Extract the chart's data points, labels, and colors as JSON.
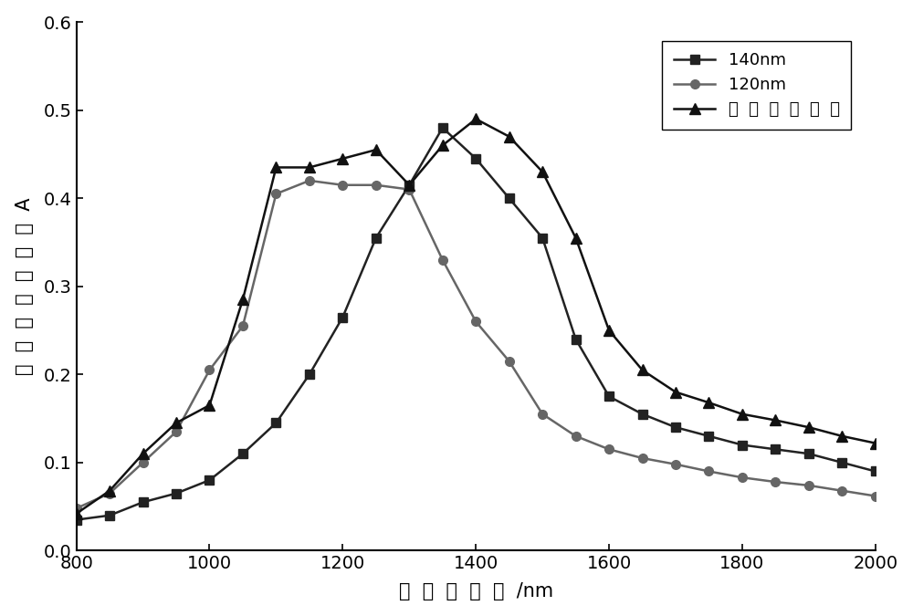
{
  "x": [
    800,
    850,
    900,
    950,
    1000,
    1050,
    1100,
    1150,
    1200,
    1250,
    1300,
    1350,
    1400,
    1450,
    1500,
    1550,
    1600,
    1650,
    1700,
    1750,
    1800,
    1850,
    1900,
    1950,
    2000
  ],
  "y_140nm": [
    0.035,
    0.04,
    0.055,
    0.065,
    0.08,
    0.11,
    0.145,
    0.2,
    0.265,
    0.355,
    0.415,
    0.48,
    0.445,
    0.4,
    0.355,
    0.24,
    0.175,
    0.155,
    0.14,
    0.13,
    0.12,
    0.115,
    0.11,
    0.1,
    0.09
  ],
  "y_120nm": [
    0.048,
    0.065,
    0.1,
    0.135,
    0.205,
    0.255,
    0.405,
    0.42,
    0.415,
    0.415,
    0.41,
    0.33,
    0.26,
    0.215,
    0.155,
    0.13,
    0.115,
    0.105,
    0.098,
    0.09,
    0.083,
    0.078,
    0.074,
    0.068,
    0.062
  ],
  "y_broadband": [
    0.042,
    0.068,
    0.11,
    0.145,
    0.165,
    0.285,
    0.435,
    0.435,
    0.445,
    0.455,
    0.415,
    0.46,
    0.49,
    0.47,
    0.43,
    0.355,
    0.25,
    0.205,
    0.18,
    0.168,
    0.155,
    0.148,
    0.14,
    0.13,
    0.122
  ],
  "color_140nm": "#222222",
  "color_120nm": "#666666",
  "color_broadband": "#111111",
  "xlim": [
    800,
    2000
  ],
  "ylim": [
    0.0,
    0.6
  ],
  "yticks": [
    0.0,
    0.1,
    0.2,
    0.3,
    0.4,
    0.5,
    0.6
  ],
  "xticks": [
    800,
    1000,
    1200,
    1400,
    1600,
    1800,
    2000
  ]
}
